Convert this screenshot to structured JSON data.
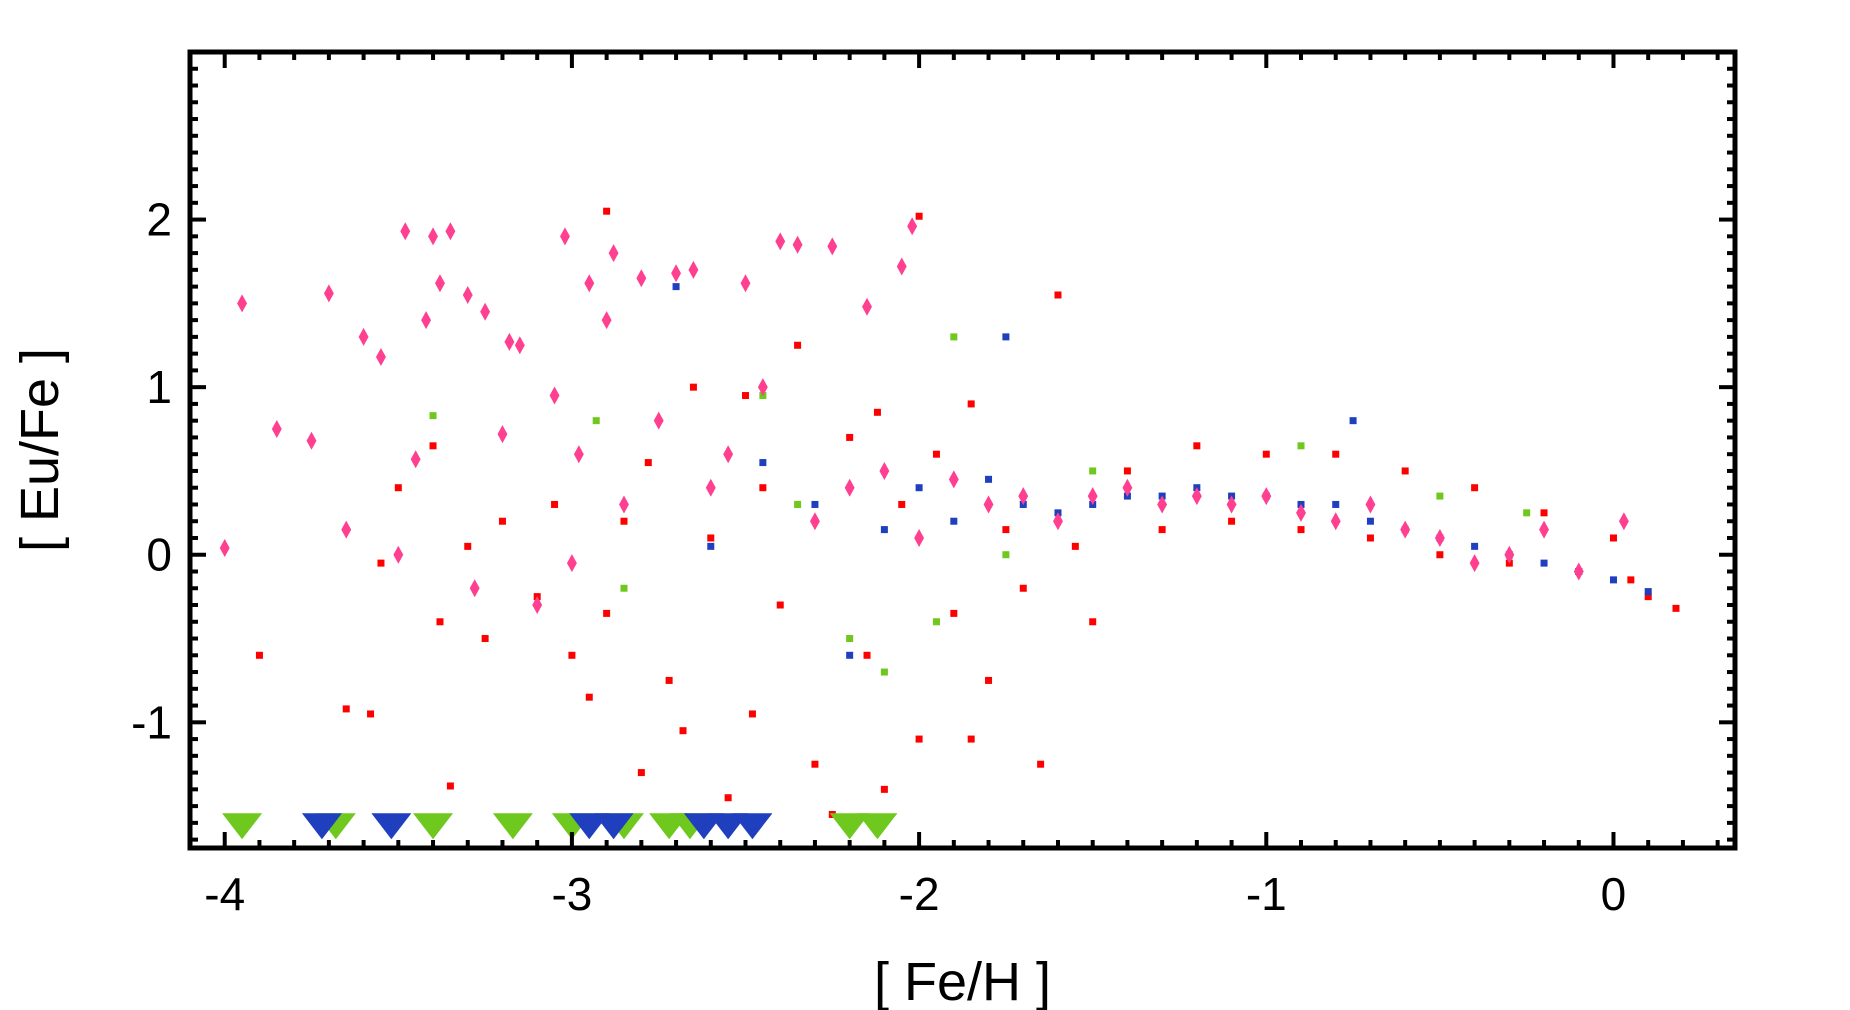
{
  "chart_data": {
    "type": "scatter",
    "title": "",
    "xlabel": "[ Fe/H ]",
    "ylabel": "[ Eu/Fe ]",
    "xlim": [
      -4.1,
      0.35
    ],
    "ylim": [
      -1.75,
      3.0
    ],
    "x_ticks": [
      -4,
      -3,
      -2,
      -1,
      0
    ],
    "y_ticks": [
      -1,
      0,
      1,
      2
    ],
    "x_tick_labels": [
      "-4",
      "-3",
      "-2",
      "-1",
      "0"
    ],
    "y_tick_labels": [
      "-1",
      "0",
      "1",
      "2"
    ],
    "grid": false,
    "legend": "none",
    "series": [
      {
        "marker": "square",
        "color": "#ff0000",
        "points": [
          [
            -3.9,
            -0.6
          ],
          [
            -3.65,
            -0.92
          ],
          [
            -3.58,
            -0.95
          ],
          [
            -3.55,
            -0.05
          ],
          [
            -3.5,
            0.4
          ],
          [
            -3.4,
            0.65
          ],
          [
            -3.38,
            -0.4
          ],
          [
            -3.35,
            -1.38
          ],
          [
            -3.3,
            0.05
          ],
          [
            -3.25,
            -0.5
          ],
          [
            -3.2,
            0.2
          ],
          [
            -3.1,
            -0.25
          ],
          [
            -3.05,
            0.3
          ],
          [
            -3.0,
            -0.6
          ],
          [
            -2.95,
            -0.85
          ],
          [
            -2.9,
            -0.35
          ],
          [
            -2.85,
            0.2
          ],
          [
            -2.8,
            -1.3
          ],
          [
            -2.78,
            0.55
          ],
          [
            -2.72,
            -0.75
          ],
          [
            -2.68,
            -1.05
          ],
          [
            -2.6,
            0.1
          ],
          [
            -2.55,
            -1.45
          ],
          [
            -2.5,
            0.95
          ],
          [
            -2.45,
            0.4
          ],
          [
            -2.4,
            -0.3
          ],
          [
            -2.35,
            1.25
          ],
          [
            -2.3,
            -1.25
          ],
          [
            -2.2,
            0.7
          ],
          [
            -2.15,
            -0.6
          ],
          [
            -2.1,
            -1.4
          ],
          [
            -2.05,
            0.3
          ],
          [
            -2.0,
            -1.1
          ],
          [
            -1.95,
            0.6
          ],
          [
            -1.9,
            -0.35
          ],
          [
            -1.85,
            0.9
          ],
          [
            -1.8,
            -0.75
          ],
          [
            -1.75,
            0.15
          ],
          [
            -1.7,
            -0.2
          ],
          [
            -1.6,
            1.55
          ],
          [
            -1.55,
            0.05
          ],
          [
            -1.5,
            -0.4
          ],
          [
            -1.4,
            0.5
          ],
          [
            -1.3,
            0.15
          ],
          [
            -1.2,
            0.65
          ],
          [
            -1.1,
            0.2
          ],
          [
            -1.0,
            0.6
          ],
          [
            -0.9,
            0.15
          ],
          [
            -0.8,
            0.6
          ],
          [
            -0.7,
            0.1
          ],
          [
            -0.6,
            0.5
          ],
          [
            -0.5,
            0.0
          ],
          [
            -0.4,
            0.4
          ],
          [
            -0.3,
            -0.05
          ],
          [
            -0.2,
            0.25
          ],
          [
            -0.1,
            -0.1
          ],
          [
            0.0,
            0.1
          ],
          [
            0.05,
            -0.15
          ],
          [
            0.1,
            -0.25
          ],
          [
            0.18,
            -0.32
          ],
          [
            -2.0,
            2.02
          ],
          [
            -1.65,
            -1.25
          ],
          [
            -2.9,
            2.05
          ],
          [
            -2.25,
            -1.55
          ],
          [
            -1.85,
            -1.1
          ],
          [
            -2.65,
            1.0
          ],
          [
            -2.48,
            -0.95
          ],
          [
            -2.12,
            0.85
          ]
        ]
      },
      {
        "marker": "square",
        "color": "#1f3fbf",
        "points": [
          [
            -2.7,
            1.6
          ],
          [
            -2.6,
            0.05
          ],
          [
            -2.45,
            0.55
          ],
          [
            -2.3,
            0.3
          ],
          [
            -2.2,
            -0.6
          ],
          [
            -2.1,
            0.15
          ],
          [
            -2.0,
            0.4
          ],
          [
            -1.9,
            0.2
          ],
          [
            -1.8,
            0.45
          ],
          [
            -1.7,
            0.3
          ],
          [
            -1.6,
            0.25
          ],
          [
            -1.5,
            0.3
          ],
          [
            -1.4,
            0.35
          ],
          [
            -1.3,
            0.35
          ],
          [
            -1.2,
            0.4
          ],
          [
            -1.1,
            0.35
          ],
          [
            -1.0,
            0.35
          ],
          [
            -0.9,
            0.3
          ],
          [
            -0.8,
            0.3
          ],
          [
            -0.7,
            0.2
          ],
          [
            -0.6,
            0.15
          ],
          [
            -0.5,
            0.1
          ],
          [
            -0.4,
            0.05
          ],
          [
            -0.3,
            0.0
          ],
          [
            -0.2,
            -0.05
          ],
          [
            -0.1,
            -0.1
          ],
          [
            0.0,
            -0.15
          ],
          [
            0.1,
            -0.22
          ],
          [
            -0.75,
            0.8
          ],
          [
            -1.75,
            1.3
          ]
        ]
      },
      {
        "marker": "square",
        "color": "#6ec81e",
        "points": [
          [
            -3.4,
            0.83
          ],
          [
            -2.93,
            0.8
          ],
          [
            -2.85,
            -0.2
          ],
          [
            -2.45,
            0.95
          ],
          [
            -2.35,
            0.3
          ],
          [
            -2.2,
            -0.5
          ],
          [
            -2.1,
            -0.7
          ],
          [
            -1.95,
            -0.4
          ],
          [
            -1.9,
            1.3
          ],
          [
            -1.75,
            0.0
          ],
          [
            -1.5,
            0.5
          ],
          [
            -0.9,
            0.65
          ],
          [
            -0.5,
            0.35
          ],
          [
            -0.25,
            0.25
          ]
        ]
      },
      {
        "marker": "diamond",
        "color": "#ff3f8f",
        "points": [
          [
            -4.0,
            0.04
          ],
          [
            -3.95,
            1.5
          ],
          [
            -3.85,
            0.75
          ],
          [
            -3.75,
            0.68
          ],
          [
            -3.7,
            1.56
          ],
          [
            -3.65,
            0.15
          ],
          [
            -3.6,
            1.3
          ],
          [
            -3.55,
            1.18
          ],
          [
            -3.5,
            0.0
          ],
          [
            -3.48,
            1.93
          ],
          [
            -3.45,
            0.57
          ],
          [
            -3.42,
            1.4
          ],
          [
            -3.4,
            1.9
          ],
          [
            -3.38,
            1.62
          ],
          [
            -3.35,
            1.93
          ],
          [
            -3.3,
            1.55
          ],
          [
            -3.28,
            -0.2
          ],
          [
            -3.25,
            1.45
          ],
          [
            -3.2,
            0.72
          ],
          [
            -3.18,
            1.27
          ],
          [
            -3.15,
            1.25
          ],
          [
            -3.1,
            -0.3
          ],
          [
            -3.05,
            0.95
          ],
          [
            -3.02,
            1.9
          ],
          [
            -3.0,
            -0.05
          ],
          [
            -2.98,
            0.6
          ],
          [
            -2.95,
            1.62
          ],
          [
            -2.9,
            1.4
          ],
          [
            -2.88,
            1.8
          ],
          [
            -2.85,
            0.3
          ],
          [
            -2.8,
            1.65
          ],
          [
            -2.75,
            0.8
          ],
          [
            -2.7,
            1.68
          ],
          [
            -2.65,
            1.7
          ],
          [
            -2.6,
            0.4
          ],
          [
            -2.55,
            0.6
          ],
          [
            -2.5,
            1.62
          ],
          [
            -2.45,
            1.0
          ],
          [
            -2.4,
            1.87
          ],
          [
            -2.35,
            1.85
          ],
          [
            -2.3,
            0.2
          ],
          [
            -2.25,
            1.84
          ],
          [
            -2.2,
            0.4
          ],
          [
            -2.15,
            1.48
          ],
          [
            -2.1,
            0.5
          ],
          [
            -2.05,
            1.72
          ],
          [
            -2.02,
            1.96
          ],
          [
            -2.0,
            0.1
          ],
          [
            -1.9,
            0.45
          ],
          [
            -1.8,
            0.3
          ],
          [
            -1.7,
            0.35
          ],
          [
            -1.6,
            0.2
          ],
          [
            -1.5,
            0.35
          ],
          [
            -1.4,
            0.4
          ],
          [
            -1.3,
            0.3
          ],
          [
            -1.2,
            0.35
          ],
          [
            -1.1,
            0.3
          ],
          [
            -1.0,
            0.35
          ],
          [
            -0.9,
            0.25
          ],
          [
            -0.8,
            0.2
          ],
          [
            -0.7,
            0.3
          ],
          [
            -0.6,
            0.15
          ],
          [
            -0.5,
            0.1
          ],
          [
            -0.4,
            -0.05
          ],
          [
            -0.3,
            0.0
          ],
          [
            -0.2,
            0.15
          ],
          [
            -0.1,
            -0.1
          ],
          [
            0.03,
            0.2
          ]
        ]
      },
      {
        "marker": "triangle-down",
        "color": "#6ec81e",
        "points": [
          [
            -3.95,
            -1.62
          ],
          [
            -3.68,
            -1.62
          ],
          [
            -3.4,
            -1.62
          ],
          [
            -3.17,
            -1.62
          ],
          [
            -3.0,
            -1.62
          ],
          [
            -2.85,
            -1.62
          ],
          [
            -2.72,
            -1.62
          ],
          [
            -2.66,
            -1.62
          ],
          [
            -2.2,
            -1.62
          ],
          [
            -2.12,
            -1.62
          ]
        ]
      },
      {
        "marker": "triangle-down",
        "color": "#1f3fbf",
        "points": [
          [
            -3.72,
            -1.62
          ],
          [
            -3.52,
            -1.62
          ],
          [
            -2.95,
            -1.62
          ],
          [
            -2.88,
            -1.62
          ],
          [
            -2.62,
            -1.62
          ],
          [
            -2.55,
            -1.62
          ],
          [
            -2.48,
            -1.62
          ]
        ]
      }
    ]
  }
}
